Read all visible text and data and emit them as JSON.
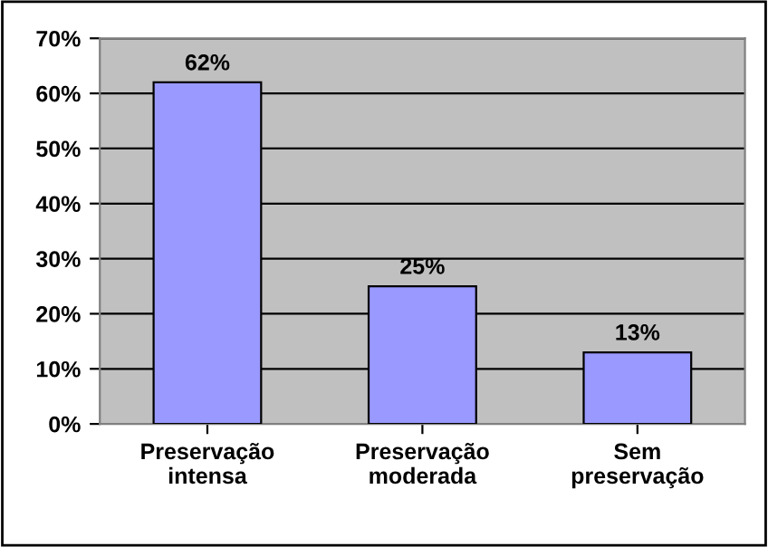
{
  "chart_data": {
    "type": "bar",
    "categories": [
      "Preservação\nintensa",
      "Preservação\nmoderada",
      "Sem\npreservação"
    ],
    "values": [
      62,
      25,
      13
    ],
    "value_labels": [
      "62%",
      "25%",
      "13%"
    ],
    "color": "#9999ff",
    "ylim": [
      0,
      70
    ],
    "yticks": [
      {
        "value": 0,
        "label": "0%"
      },
      {
        "value": 10,
        "label": "10%"
      },
      {
        "value": 20,
        "label": "20%"
      },
      {
        "value": 30,
        "label": "30%"
      },
      {
        "value": 40,
        "label": "40%"
      },
      {
        "value": 50,
        "label": "50%"
      },
      {
        "value": 60,
        "label": "60%"
      },
      {
        "value": 70,
        "label": "70%"
      }
    ],
    "grid": "y",
    "legend": false
  }
}
